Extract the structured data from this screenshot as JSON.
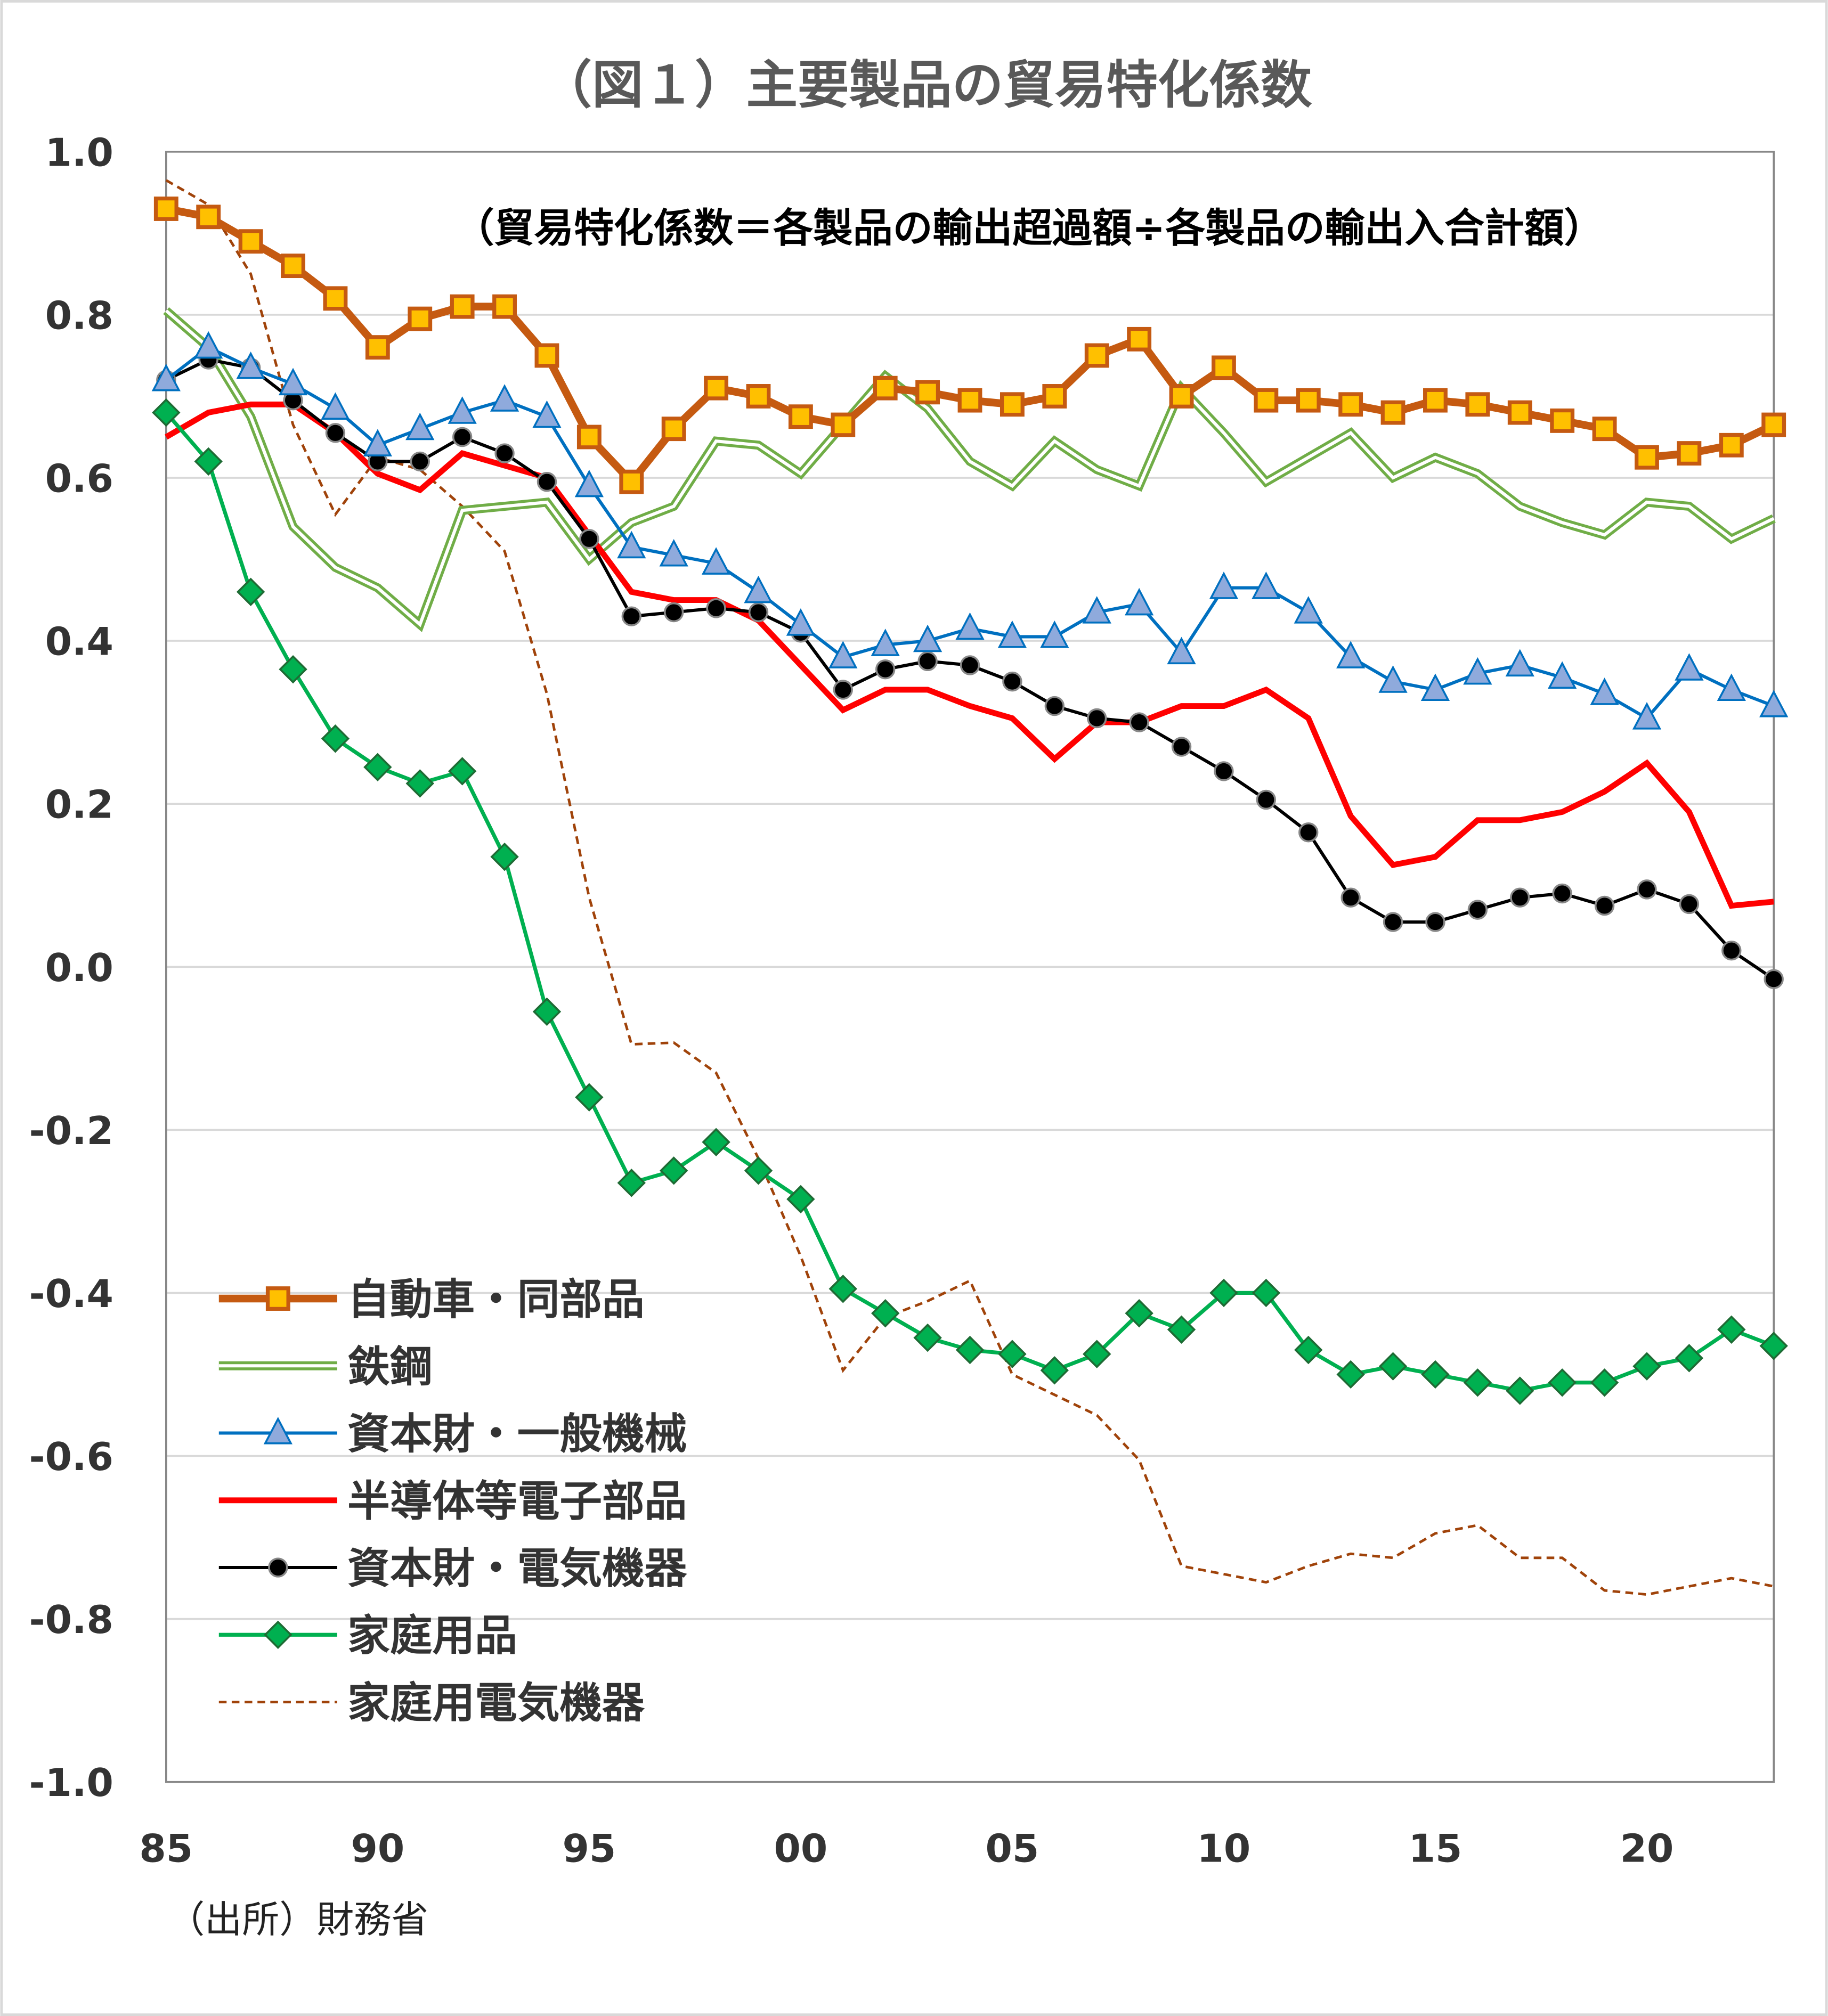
{
  "chart_data": {
    "type": "line",
    "title": "（図１）主要製品の貿易特化係数",
    "subtitle": "（貿易特化係数＝各製品の輸出超過額÷各製品の輸出入合計額）",
    "source": "（出所）財務省",
    "xlabel": "",
    "ylabel": "",
    "ylim": [
      -1.0,
      1.0
    ],
    "xlim": [
      1985,
      2023
    ],
    "grid": "horizontal",
    "legend_position": "bottom-left",
    "x_tick_values": [
      1985,
      1990,
      1995,
      2000,
      2005,
      2010,
      2015,
      2020
    ],
    "x_tick_labels": [
      "85",
      "90",
      "95",
      "00",
      "05",
      "10",
      "15",
      "20"
    ],
    "y_tick_values": [
      1.0,
      0.8,
      0.6,
      0.4,
      0.2,
      0.0,
      -0.2,
      -0.4,
      -0.6,
      -0.8,
      -1.0
    ],
    "y_tick_labels": [
      "1.0",
      "0.8",
      "0.6",
      "0.4",
      "0.2",
      "0.0",
      "-0.2",
      "-0.4",
      "-0.6",
      "-0.8",
      "-1.0"
    ],
    "x": [
      1985,
      1986,
      1987,
      1988,
      1989,
      1990,
      1991,
      1992,
      1993,
      1994,
      1995,
      1996,
      1997,
      1998,
      1999,
      2000,
      2001,
      2002,
      2003,
      2004,
      2005,
      2006,
      2007,
      2008,
      2009,
      2010,
      2011,
      2012,
      2013,
      2014,
      2015,
      2016,
      2017,
      2018,
      2019,
      2020,
      2021,
      2022,
      2023
    ],
    "series": [
      {
        "name": "自動車・同部品",
        "style": "square",
        "color": "#C55A11",
        "marker_fill": "#FFC000",
        "values": [
          0.93,
          0.92,
          0.89,
          0.86,
          0.82,
          0.76,
          0.795,
          0.81,
          0.81,
          0.75,
          0.65,
          0.595,
          0.66,
          0.71,
          0.7,
          0.675,
          0.665,
          0.71,
          0.705,
          0.695,
          0.69,
          0.7,
          0.75,
          0.77,
          0.7,
          0.735,
          0.695,
          0.695,
          0.69,
          0.68,
          0.695,
          0.69,
          0.68,
          0.67,
          0.66,
          0.625,
          0.63,
          0.64,
          0.665
        ]
      },
      {
        "name": "鉄鋼",
        "style": "double",
        "color": "#70AD47",
        "values": [
          0.805,
          0.76,
          0.675,
          0.54,
          0.49,
          0.465,
          0.42,
          0.56,
          0.565,
          0.57,
          0.5,
          0.545,
          0.565,
          0.645,
          0.64,
          0.605,
          0.665,
          0.725,
          0.685,
          0.62,
          0.59,
          0.645,
          0.61,
          0.59,
          0.71,
          0.655,
          0.595,
          0.625,
          0.655,
          0.6,
          0.625,
          0.605,
          0.565,
          0.545,
          0.53,
          0.57,
          0.565,
          0.525,
          0.55
        ]
      },
      {
        "name": "資本財・一般機械",
        "style": "triangle",
        "color": "#0070C0",
        "marker_fill": "#8FAADC",
        "values": [
          0.72,
          0.76,
          0.735,
          0.715,
          0.685,
          0.64,
          0.66,
          0.68,
          0.695,
          0.675,
          0.59,
          0.515,
          0.505,
          0.495,
          0.46,
          0.42,
          0.38,
          0.395,
          0.4,
          0.415,
          0.405,
          0.405,
          0.435,
          0.445,
          0.385,
          0.465,
          0.465,
          0.435,
          0.38,
          0.35,
          0.34,
          0.36,
          0.37,
          0.355,
          0.335,
          0.305,
          0.365,
          0.34,
          0.32
        ]
      },
      {
        "name": "半導体等電子部品",
        "style": "line",
        "color": "#FF0000",
        "values": [
          0.65,
          0.68,
          0.69,
          0.69,
          0.655,
          0.605,
          0.585,
          0.63,
          0.615,
          0.6,
          0.53,
          0.46,
          0.45,
          0.45,
          0.425,
          0.37,
          0.315,
          0.34,
          0.34,
          0.32,
          0.305,
          0.255,
          0.3,
          0.3,
          0.32,
          0.32,
          0.34,
          0.305,
          0.185,
          0.125,
          0.135,
          0.18,
          0.18,
          0.19,
          0.215,
          0.25,
          0.19,
          0.075,
          0.08
        ]
      },
      {
        "name": "資本財・電気機器",
        "style": "circle",
        "color": "#000000",
        "marker_fill": "#000000",
        "values": [
          0.72,
          0.745,
          0.735,
          0.695,
          0.655,
          0.62,
          0.62,
          0.65,
          0.63,
          0.595,
          0.525,
          0.43,
          0.435,
          0.44,
          0.435,
          0.41,
          0.34,
          0.365,
          0.375,
          0.37,
          0.35,
          0.32,
          0.305,
          0.3,
          0.27,
          0.24,
          0.205,
          0.165,
          0.085,
          0.055,
          0.055,
          0.07,
          0.085,
          0.09,
          0.075,
          0.095,
          0.077,
          0.02,
          -0.015
        ]
      },
      {
        "name": "家庭用品",
        "style": "diamond",
        "color": "#00B050",
        "marker_fill": "#00B050",
        "values": [
          0.68,
          0.62,
          0.46,
          0.365,
          0.28,
          0.245,
          0.225,
          0.24,
          0.135,
          -0.055,
          -0.16,
          -0.265,
          -0.25,
          -0.215,
          -0.25,
          -0.285,
          -0.395,
          -0.425,
          -0.455,
          -0.47,
          -0.475,
          -0.495,
          -0.475,
          -0.425,
          -0.445,
          -0.4,
          -0.4,
          -0.47,
          -0.5,
          -0.49,
          -0.5,
          -0.51,
          -0.52,
          -0.51,
          -0.51,
          -0.49,
          -0.48,
          -0.445,
          -0.465
        ]
      },
      {
        "name": "家庭用電気機器",
        "style": "dashed",
        "color": "#A0430A",
        "values": [
          0.965,
          0.935,
          0.85,
          0.665,
          0.555,
          0.625,
          0.61,
          0.565,
          0.51,
          0.335,
          0.085,
          -0.095,
          -0.093,
          -0.13,
          -0.235,
          -0.355,
          -0.495,
          -0.43,
          -0.41,
          -0.385,
          -0.5,
          -0.525,
          -0.55,
          -0.605,
          -0.735,
          -0.745,
          -0.755,
          -0.735,
          -0.72,
          -0.725,
          -0.695,
          -0.685,
          -0.725,
          -0.725,
          -0.765,
          -0.77,
          -0.76,
          -0.75,
          -0.76
        ]
      }
    ]
  }
}
